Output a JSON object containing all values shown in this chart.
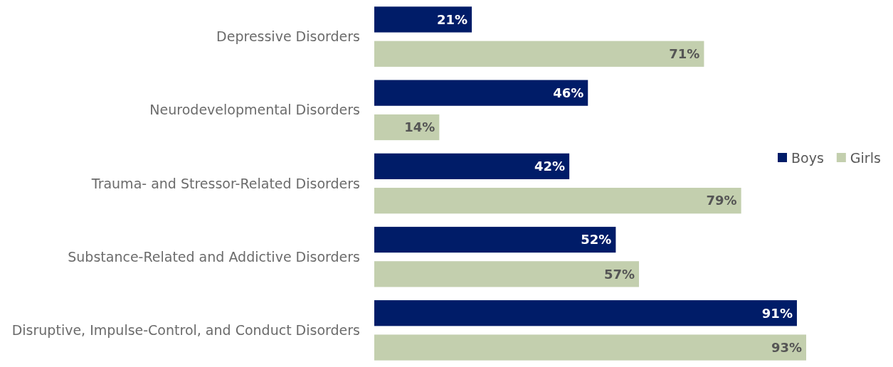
{
  "chart_data": {
    "type": "bar",
    "orientation": "horizontal",
    "categories": [
      "Depressive Disorders",
      "Neurodevelopmental Disorders",
      "Trauma- and Stressor-Related Disorders",
      "Substance-Related and Addictive Disorders",
      "Disruptive, Impulse-Control, and Conduct Disorders"
    ],
    "series": [
      {
        "name": "Boys",
        "color": "#001c68",
        "values": [
          21,
          46,
          42,
          52,
          91
        ],
        "value_labels": [
          "21%",
          "46%",
          "42%",
          "52%",
          "91%"
        ]
      },
      {
        "name": "Girls",
        "color": "#c3cfae",
        "values": [
          71,
          14,
          79,
          57,
          93
        ],
        "value_labels": [
          "71%",
          "14%",
          "79%",
          "57%",
          "93%"
        ]
      }
    ],
    "legend": "right",
    "grid": false
  }
}
